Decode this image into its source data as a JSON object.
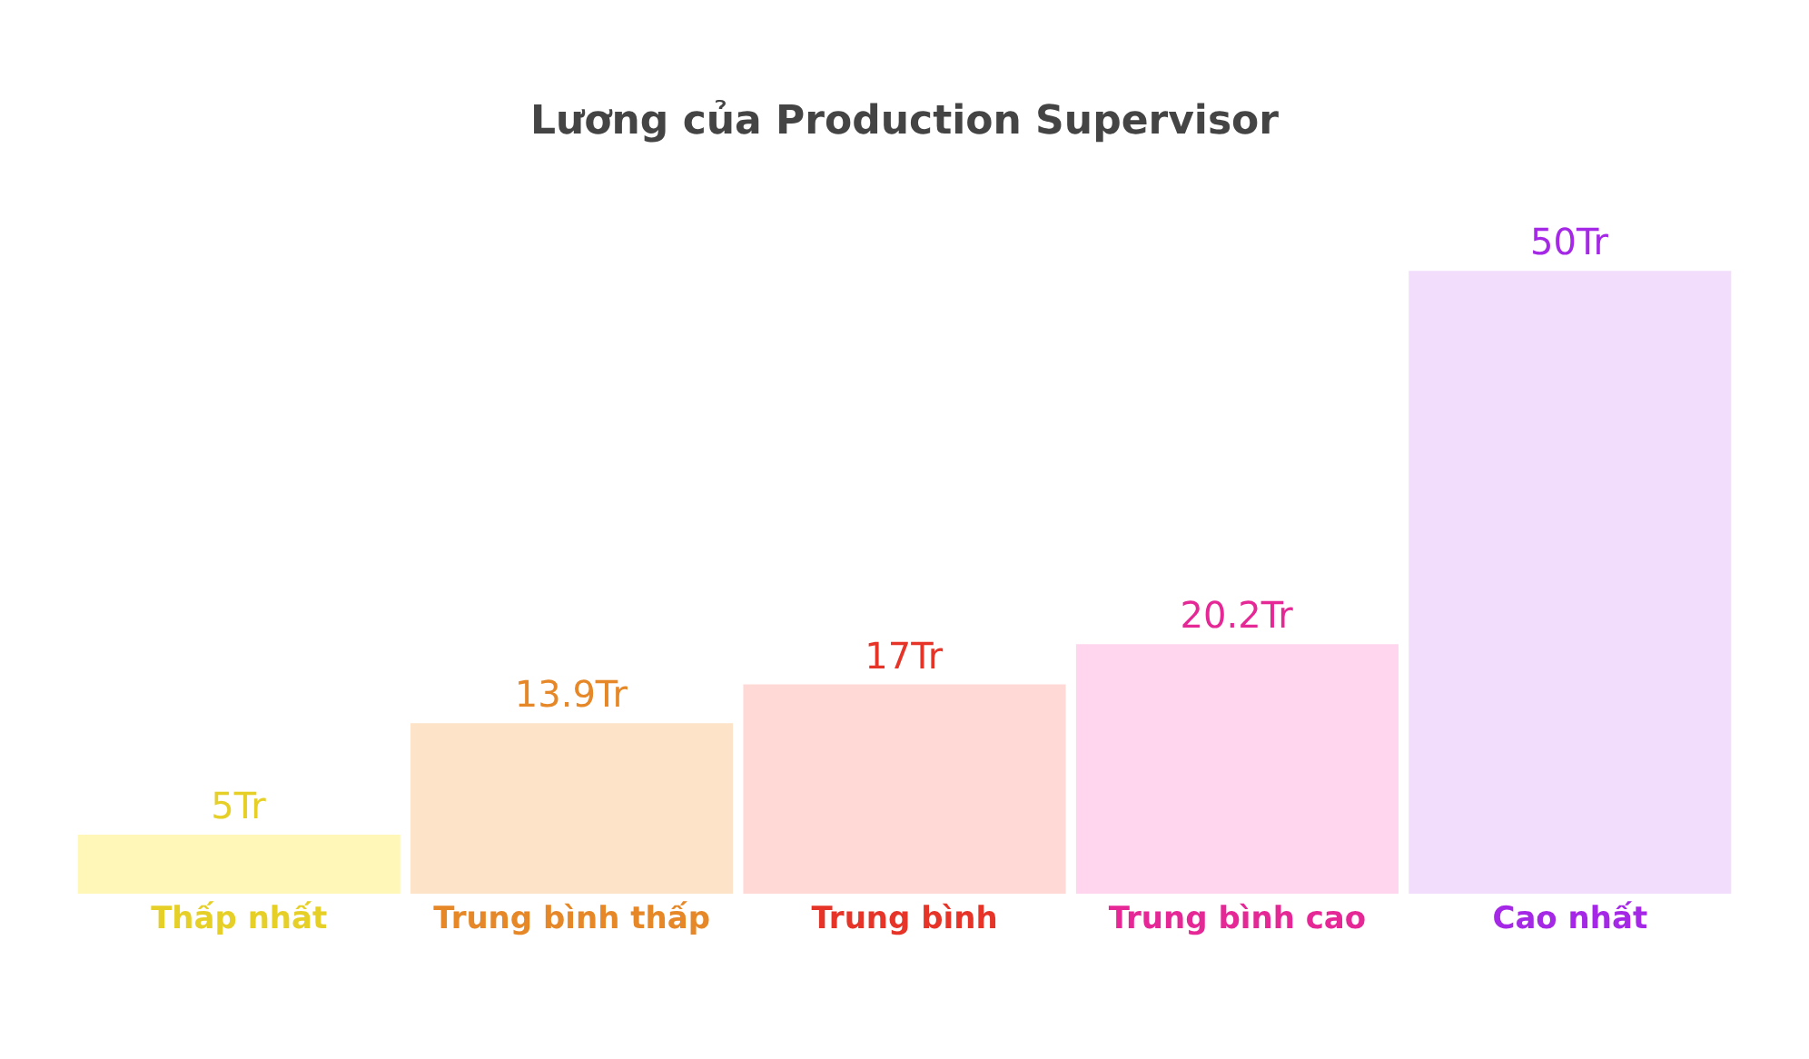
{
  "chart_data": {
    "type": "bar",
    "title": "Lương của Production Supervisor",
    "categories": [
      "Thấp nhất",
      "Trung bình thấp",
      "Trung bình",
      "Trung bình cao",
      "Cao nhất"
    ],
    "values": [
      5,
      13.9,
      17,
      20.2,
      50
    ],
    "value_labels": [
      "5Tr",
      "13.9Tr",
      "17Tr",
      "20.2Tr",
      "50Tr"
    ],
    "colors": [
      "#fff7b8",
      "#fde3c8",
      "#ffd9d6",
      "#ffd6ee",
      "#f2ddfd"
    ]
  }
}
